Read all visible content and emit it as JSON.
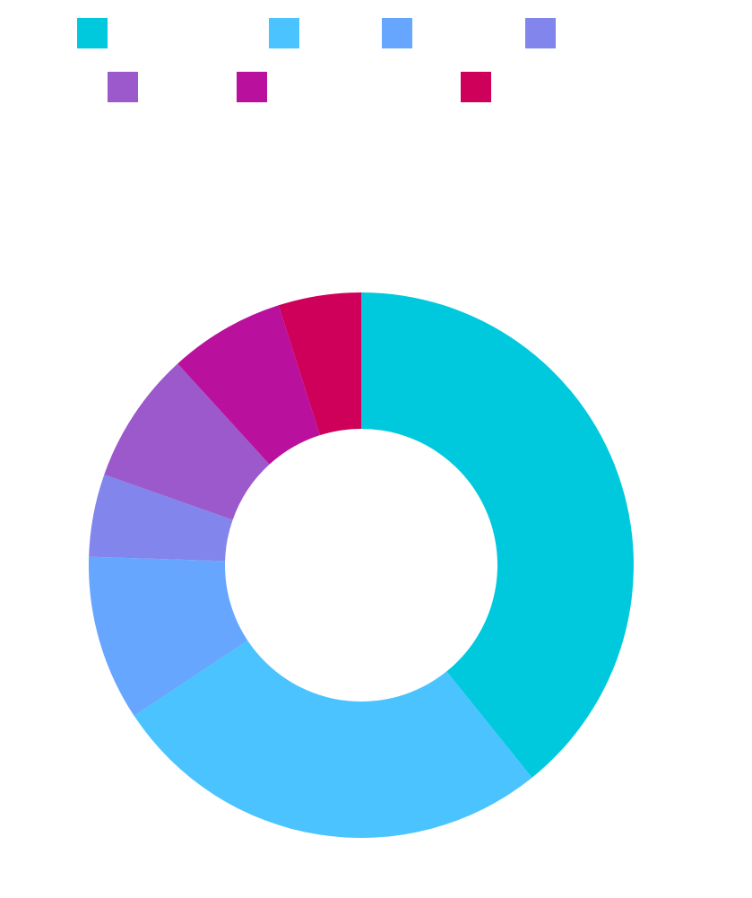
{
  "chart_data": {
    "type": "pie",
    "donut": true,
    "start_angle_deg": 0,
    "direction": "clockwise",
    "legend_position": "top",
    "series": [
      {
        "value": 40,
        "color": "#00C9DE"
      },
      {
        "value": 27,
        "color": "#4AC3FF"
      },
      {
        "value": 10,
        "color": "#67A6FF"
      },
      {
        "value": 5,
        "color": "#8285EB"
      },
      {
        "value": 8,
        "color": "#9B59CC"
      },
      {
        "value": 7,
        "color": "#B9109D"
      },
      {
        "value": 5,
        "color": "#CE0059"
      }
    ]
  }
}
